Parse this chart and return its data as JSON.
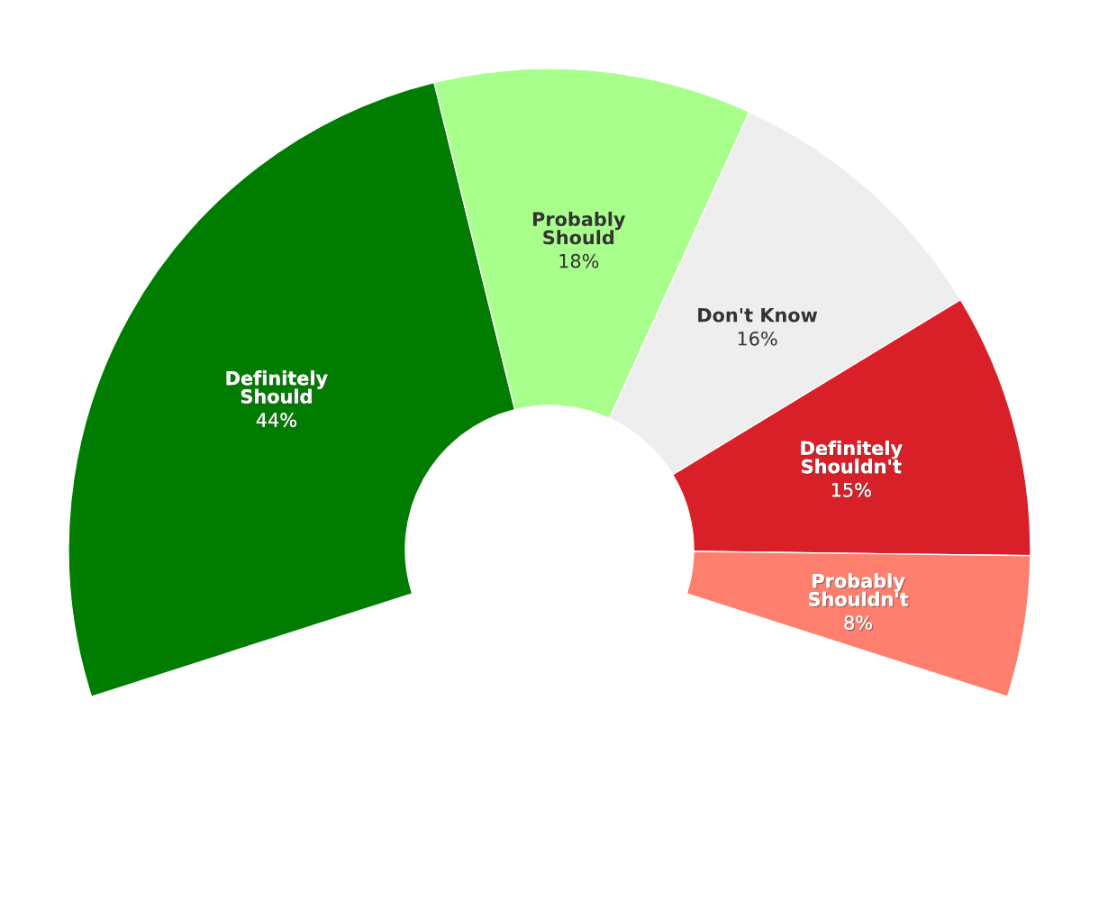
{
  "chart_data": {
    "type": "donut",
    "categories": [
      "Definitely\nShould",
      "Probably\nShould",
      "Don't Know",
      "Definitely\nShouldn't",
      "Probably\nShouldn't"
    ],
    "values": [
      44,
      18,
      16,
      15,
      8
    ],
    "colors": [
      "#007d00",
      "#a8ff8c",
      "#eeeeee",
      "#d92028",
      "#ff7f6e"
    ],
    "value_labels": [
      "44%",
      "18%",
      "16%",
      "15%",
      "8%"
    ]
  }
}
